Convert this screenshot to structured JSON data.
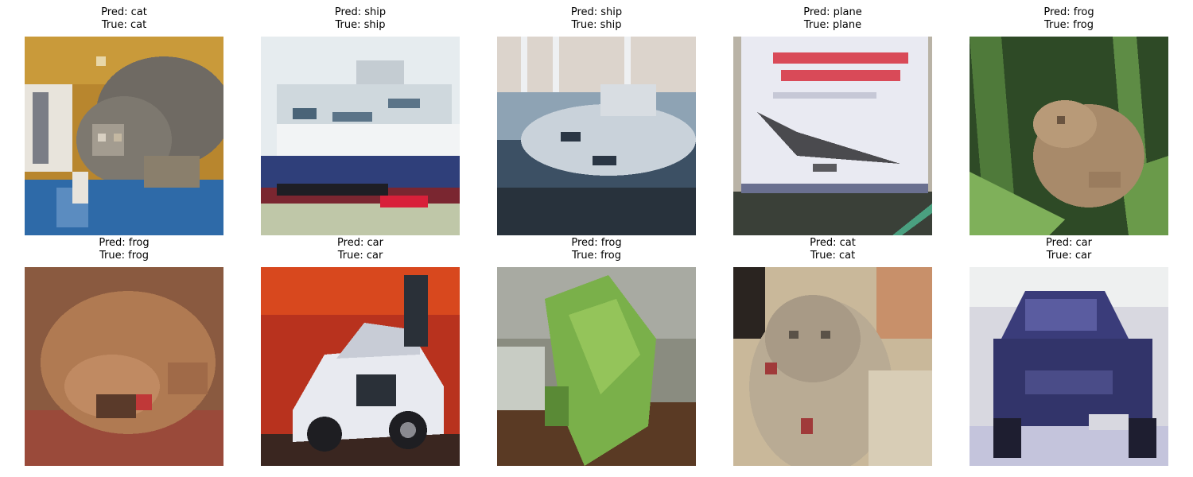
{
  "figure": {
    "panels": [
      {
        "pred_label": "Pred: cat",
        "true_label": "True: cat",
        "subject": "cat",
        "icon": "cat-photo"
      },
      {
        "pred_label": "Pred: ship",
        "true_label": "True: ship",
        "subject": "ship",
        "icon": "ship-photo"
      },
      {
        "pred_label": "Pred: ship",
        "true_label": "True: ship",
        "subject": "ship",
        "icon": "ship-photo"
      },
      {
        "pred_label": "Pred: plane",
        "true_label": "True: plane",
        "subject": "plane",
        "icon": "plane-photo"
      },
      {
        "pred_label": "Pred: frog",
        "true_label": "True: frog",
        "subject": "frog",
        "icon": "frog-photo"
      },
      {
        "pred_label": "Pred: frog",
        "true_label": "True: frog",
        "subject": "frog",
        "icon": "frog-photo"
      },
      {
        "pred_label": "Pred: car",
        "true_label": "True: car",
        "subject": "car",
        "icon": "car-photo"
      },
      {
        "pred_label": "Pred: frog",
        "true_label": "True: frog",
        "subject": "frog",
        "icon": "frog-photo"
      },
      {
        "pred_label": "Pred: cat",
        "true_label": "True: cat",
        "subject": "cat",
        "icon": "cat-photo"
      },
      {
        "pred_label": "Pred: car",
        "true_label": "True: car",
        "subject": "car",
        "icon": "car-photo"
      }
    ]
  }
}
